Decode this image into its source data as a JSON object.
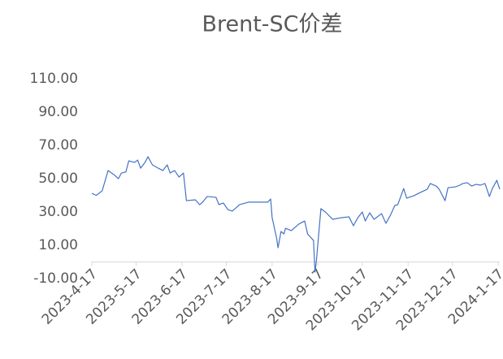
{
  "chart_data": {
    "type": "line",
    "title": "Brent-SC价差",
    "x": [
      "2023-4-17",
      "2023-4-20",
      "2023-4-24",
      "2023-4-28",
      "2023-5-2",
      "2023-5-5",
      "2023-5-7",
      "2023-5-10",
      "2023-5-12",
      "2023-5-16",
      "2023-5-18",
      "2023-5-20",
      "2023-5-23",
      "2023-5-25",
      "2023-5-28",
      "2023-6-1",
      "2023-6-4",
      "2023-6-7",
      "2023-6-9",
      "2023-6-12",
      "2023-6-15",
      "2023-6-18",
      "2023-6-20",
      "2023-6-26",
      "2023-6-29",
      "2023-7-1",
      "2023-7-4",
      "2023-7-10",
      "2023-7-12",
      "2023-7-15",
      "2023-7-18",
      "2023-7-21",
      "2023-7-26",
      "2023-8-1",
      "2023-8-9",
      "2023-8-14",
      "2023-8-16",
      "2023-8-17",
      "2023-8-20",
      "2023-8-21",
      "2023-8-23",
      "2023-8-25",
      "2023-8-26",
      "2023-8-30",
      "2023-9-4",
      "2023-9-8",
      "2023-9-10",
      "2023-9-14",
      "2023-9-15",
      "2023-9-16",
      "2023-9-19",
      "2023-9-22",
      "2023-9-27",
      "2023-10-3",
      "2023-10-8",
      "2023-10-11",
      "2023-10-14",
      "2023-10-17",
      "2023-10-19",
      "2023-10-22",
      "2023-10-25",
      "2023-10-30",
      "2023-11-2",
      "2023-11-5",
      "2023-11-8",
      "2023-11-10",
      "2023-11-14",
      "2023-11-16",
      "2023-11-21",
      "2023-11-24",
      "2023-11-30",
      "2023-12-2",
      "2023-12-6",
      "2023-12-8",
      "2023-12-12",
      "2023-12-14",
      "2023-12-19",
      "2023-12-22",
      "2023-12-24",
      "2023-12-27",
      "2023-12-30",
      "2024-1-2",
      "2024-1-5",
      "2024-1-8",
      "2024-1-11",
      "2024-1-13",
      "2024-1-16",
      "2024-1-18"
    ],
    "series": [
      {
        "name": "Brent-SC价差",
        "color": "#4472c4",
        "values": [
          41.2,
          40,
          42.7,
          54.9,
          52.4,
          50,
          53.4,
          54,
          60.7,
          59.8,
          61.2,
          56.3,
          59.8,
          63.2,
          58.3,
          56.3,
          54.9,
          58.3,
          53.4,
          54.9,
          51,
          53.4,
          36.8,
          37.3,
          34.4,
          35.9,
          39.3,
          38.8,
          34.4,
          35.4,
          31.5,
          30.5,
          34.4,
          35.9,
          35.9,
          35.9,
          37.8,
          26.6,
          14.4,
          8.5,
          18.3,
          16.8,
          20.2,
          18.8,
          22.7,
          24.6,
          16.8,
          12.9,
          -6.1,
          1.2,
          32,
          30,
          25.6,
          26.6,
          27.1,
          21.7,
          26.6,
          30,
          24.6,
          29.5,
          25.6,
          29,
          23.2,
          28,
          33.9,
          34.4,
          44.1,
          38.3,
          39.8,
          41.2,
          43.7,
          47.1,
          45.6,
          43.7,
          36.8,
          44.6,
          45.1,
          46.1,
          47.1,
          47.6,
          45.6,
          46.6,
          46.1,
          47.1,
          39.3,
          44.1,
          49,
          43.7
        ]
      }
    ],
    "xlim": [
      "2023-4-17",
      "2024-1-18"
    ],
    "xticks": [
      "2023-4-17",
      "2023-5-17",
      "2023-6-17",
      "2023-7-17",
      "2023-8-17",
      "2023-9-17",
      "2023-10-17",
      "2023-11-17",
      "2023-12-17",
      "2024-1-17"
    ],
    "ylim": [
      -10,
      110
    ],
    "yticks": [
      {
        "value": -10,
        "label": "-10.00"
      },
      {
        "value": 10,
        "label": "10.00"
      },
      {
        "value": 30,
        "label": "30.00"
      },
      {
        "value": 50,
        "label": "50.00"
      },
      {
        "value": 70,
        "label": "70.00"
      },
      {
        "value": 90,
        "label": "90.00"
      },
      {
        "value": 110,
        "label": "110.00"
      }
    ],
    "grid": false
  }
}
